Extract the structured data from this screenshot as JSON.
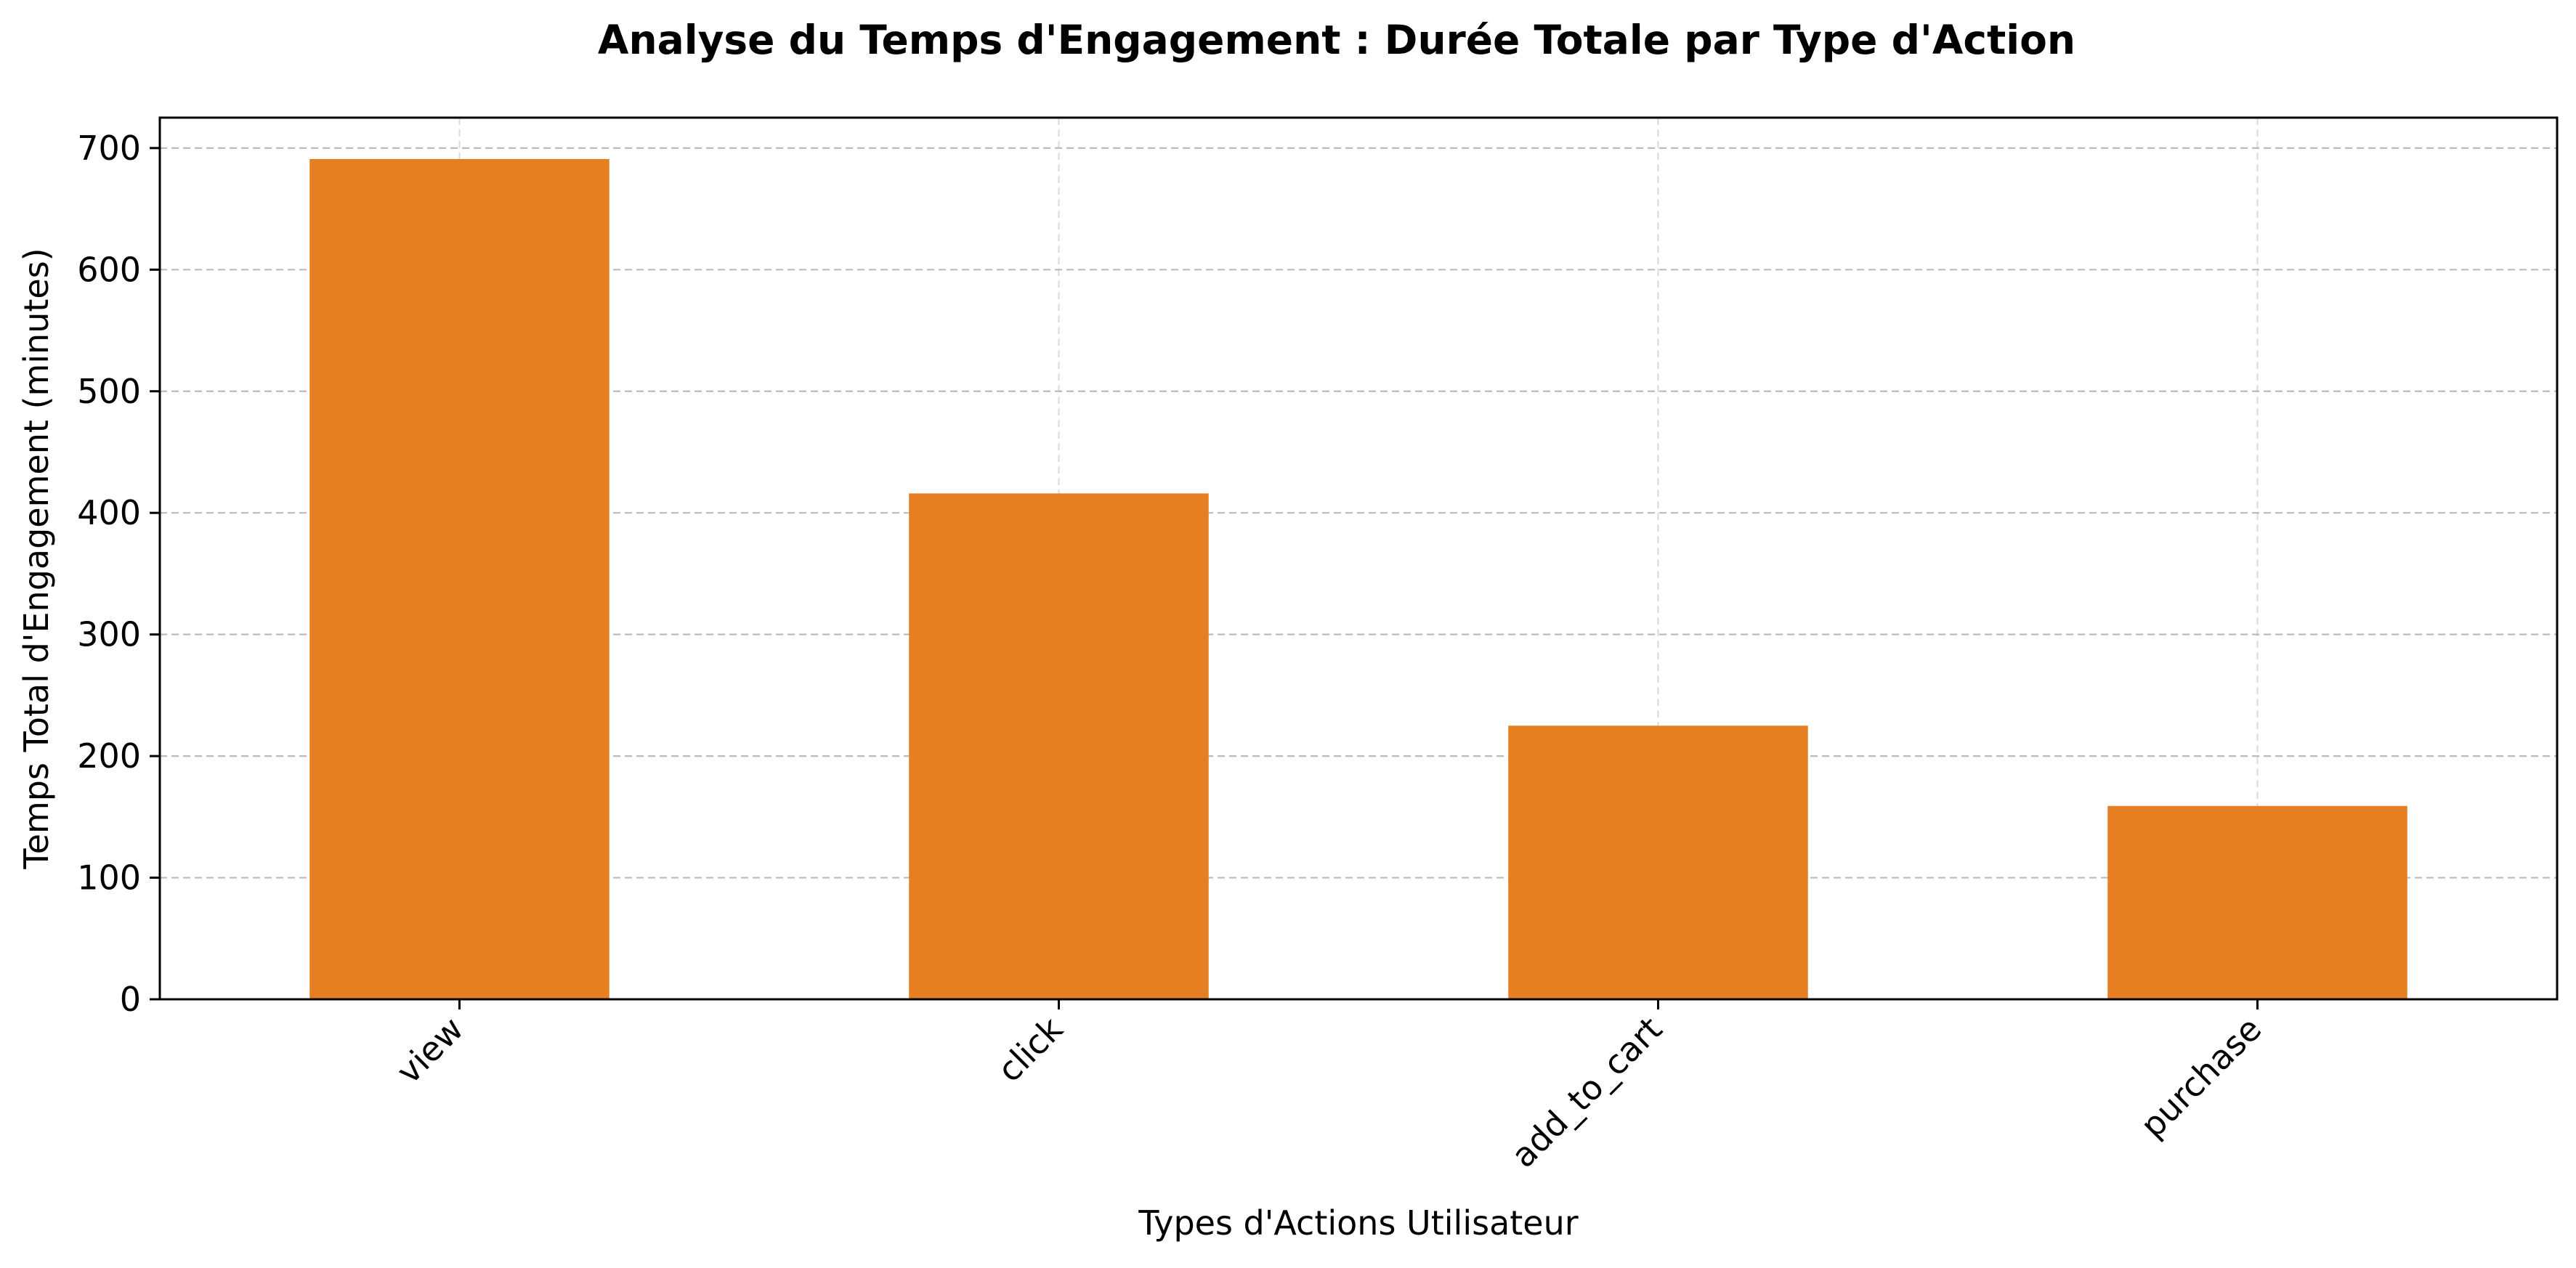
{
  "chart_data": {
    "type": "bar",
    "title": "Analyse du Temps d'Engagement : Durée Totale par Type d'Action",
    "xlabel": "Types d'Actions Utilisateur",
    "ylabel": "Temps Total d'Engagement (minutes)",
    "categories": [
      "view",
      "click",
      "add_to_cart",
      "purchase"
    ],
    "values": [
      691,
      416,
      225,
      159
    ],
    "ylim": [
      0,
      725
    ],
    "yticks": [
      0,
      100,
      200,
      300,
      400,
      500,
      600,
      700
    ],
    "grid": true,
    "legend": "none",
    "bar_color": "#e67e22"
  }
}
